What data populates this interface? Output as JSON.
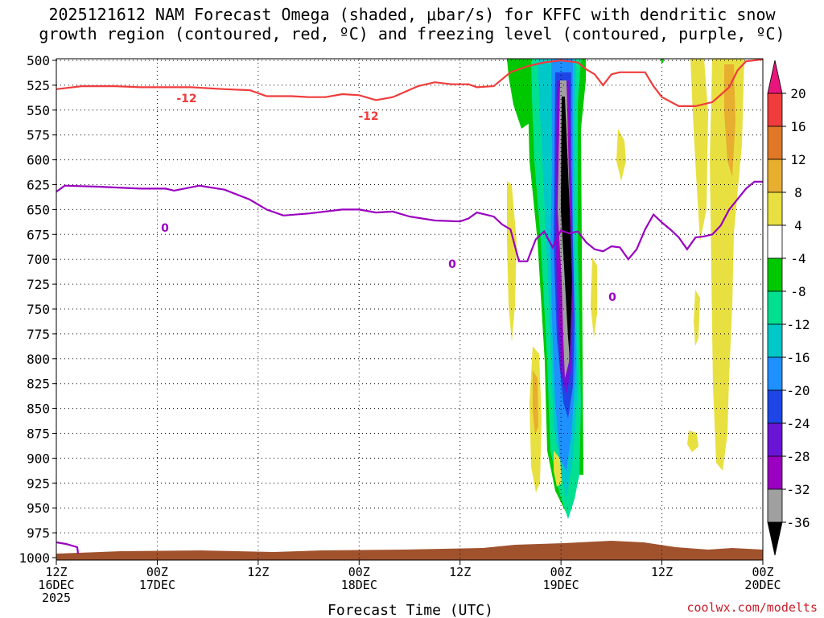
{
  "title_line1": "2025121612 NAM Forecast Omega (shaded, μbar/s) for KFFC with dendritic snow",
  "title_line2": "growth region (contoured, red, ºC) and freezing level (contoured, purple, ºC)",
  "xlabel": "Forecast Time (UTC)",
  "credit": "coolwx.com/modelts",
  "contour_labels": {
    "red": "-12",
    "purple": "0"
  },
  "chart_data": {
    "type": "time-height contour",
    "y_axis": {
      "label": "",
      "scale": "pressure (hPa), inverted",
      "ticks": [
        500,
        525,
        550,
        575,
        600,
        625,
        650,
        675,
        700,
        725,
        750,
        775,
        800,
        825,
        850,
        875,
        900,
        925,
        950,
        975,
        1000
      ],
      "range": [
        1000,
        500
      ]
    },
    "x_axis": {
      "label": "Forecast Time (UTC)",
      "range_hours": [
        0,
        84
      ],
      "ticks": [
        {
          "hour": 0,
          "lines": [
            "12Z",
            "16DEC",
            "2025"
          ]
        },
        {
          "hour": 12,
          "lines": [
            "00Z",
            "17DEC"
          ]
        },
        {
          "hour": 24,
          "lines": [
            "12Z"
          ]
        },
        {
          "hour": 36,
          "lines": [
            "00Z",
            "18DEC"
          ]
        },
        {
          "hour": 48,
          "lines": [
            "12Z"
          ]
        },
        {
          "hour": 60,
          "lines": [
            "00Z",
            "19DEC"
          ]
        },
        {
          "hour": 72,
          "lines": [
            "12Z"
          ]
        },
        {
          "hour": 84,
          "lines": [
            "00Z",
            "20DEC"
          ]
        }
      ]
    },
    "grid": true,
    "colorbar": {
      "units": "μbar/s",
      "labels": [
        "20",
        "16",
        "12",
        "8",
        "4",
        "-4",
        "-8",
        "-12",
        "-16",
        "-20",
        "-24",
        "-28",
        "-32",
        "-36"
      ],
      "colors": [
        "#e8157d",
        "#f03c3c",
        "#e07828",
        "#e8ae30",
        "#e8e040",
        "#ffffff",
        "#00c800",
        "#00e090",
        "#00c8c8",
        "#1e90ff",
        "#1e46e6",
        "#6a14d6",
        "#9a00c0",
        "#a0a0a0",
        "#000000"
      ]
    },
    "red_contour": {
      "name": "-12 °C isotherm",
      "color": "#f03c3c",
      "points": [
        [
          0,
          529
        ],
        [
          3,
          526
        ],
        [
          7,
          526
        ],
        [
          10,
          527
        ],
        [
          13,
          527
        ],
        [
          16,
          527
        ],
        [
          20,
          529
        ],
        [
          23,
          530
        ],
        [
          25,
          536
        ],
        [
          28,
          536
        ],
        [
          30,
          537
        ],
        [
          32,
          537
        ],
        [
          34,
          534
        ],
        [
          36,
          535
        ],
        [
          38,
          540
        ],
        [
          40,
          537
        ],
        [
          43,
          526
        ],
        [
          45,
          522
        ],
        [
          47,
          524
        ],
        [
          49,
          524
        ],
        [
          50,
          527
        ],
        [
          52,
          526
        ],
        [
          54,
          512
        ],
        [
          56,
          506
        ],
        [
          58,
          502
        ],
        [
          60,
          500
        ],
        [
          62,
          502
        ],
        [
          63,
          509
        ],
        [
          64,
          514
        ],
        [
          65,
          525
        ],
        [
          66,
          514
        ],
        [
          67,
          512
        ],
        [
          70,
          512
        ],
        [
          71,
          526
        ],
        [
          72,
          537
        ],
        [
          74,
          546
        ],
        [
          76,
          546
        ],
        [
          78,
          542
        ],
        [
          80,
          527
        ],
        [
          81,
          510
        ],
        [
          82,
          501
        ],
        [
          84,
          499
        ]
      ]
    },
    "purple_contour": {
      "name": "0 °C isotherm (freezing level)",
      "color": "#9a00c0",
      "points": [
        [
          0,
          632
        ],
        [
          1,
          626
        ],
        [
          5,
          627
        ],
        [
          10,
          629
        ],
        [
          13,
          629
        ],
        [
          14,
          631
        ],
        [
          17,
          626
        ],
        [
          20,
          630
        ],
        [
          23,
          640
        ],
        [
          25,
          650
        ],
        [
          27,
          656
        ],
        [
          30,
          654
        ],
        [
          34,
          650
        ],
        [
          36,
          650
        ],
        [
          38,
          653
        ],
        [
          40,
          652
        ],
        [
          42,
          657
        ],
        [
          45,
          661
        ],
        [
          48,
          662
        ],
        [
          49,
          659
        ],
        [
          50,
          653
        ],
        [
          52,
          657
        ],
        [
          53,
          665
        ],
        [
          54,
          670
        ],
        [
          55,
          702
        ],
        [
          56,
          702
        ],
        [
          57,
          680
        ],
        [
          58,
          672
        ],
        [
          59,
          688
        ],
        [
          60,
          671
        ],
        [
          61,
          674
        ],
        [
          62,
          672
        ],
        [
          63,
          683
        ],
        [
          64,
          690
        ],
        [
          65,
          692
        ],
        [
          66,
          687
        ],
        [
          67,
          688
        ],
        [
          68,
          700
        ],
        [
          69,
          690
        ],
        [
          70,
          670
        ],
        [
          71,
          655
        ],
        [
          72,
          663
        ],
        [
          73,
          670
        ],
        [
          74,
          678
        ],
        [
          75,
          690
        ],
        [
          76,
          678
        ],
        [
          77,
          677
        ],
        [
          78,
          675
        ],
        [
          79,
          666
        ],
        [
          80,
          650
        ],
        [
          82,
          629
        ],
        [
          83,
          622
        ],
        [
          84,
          622
        ]
      ]
    },
    "annotations": [
      "-12",
      "-12",
      "0",
      "0",
      "0"
    ]
  }
}
